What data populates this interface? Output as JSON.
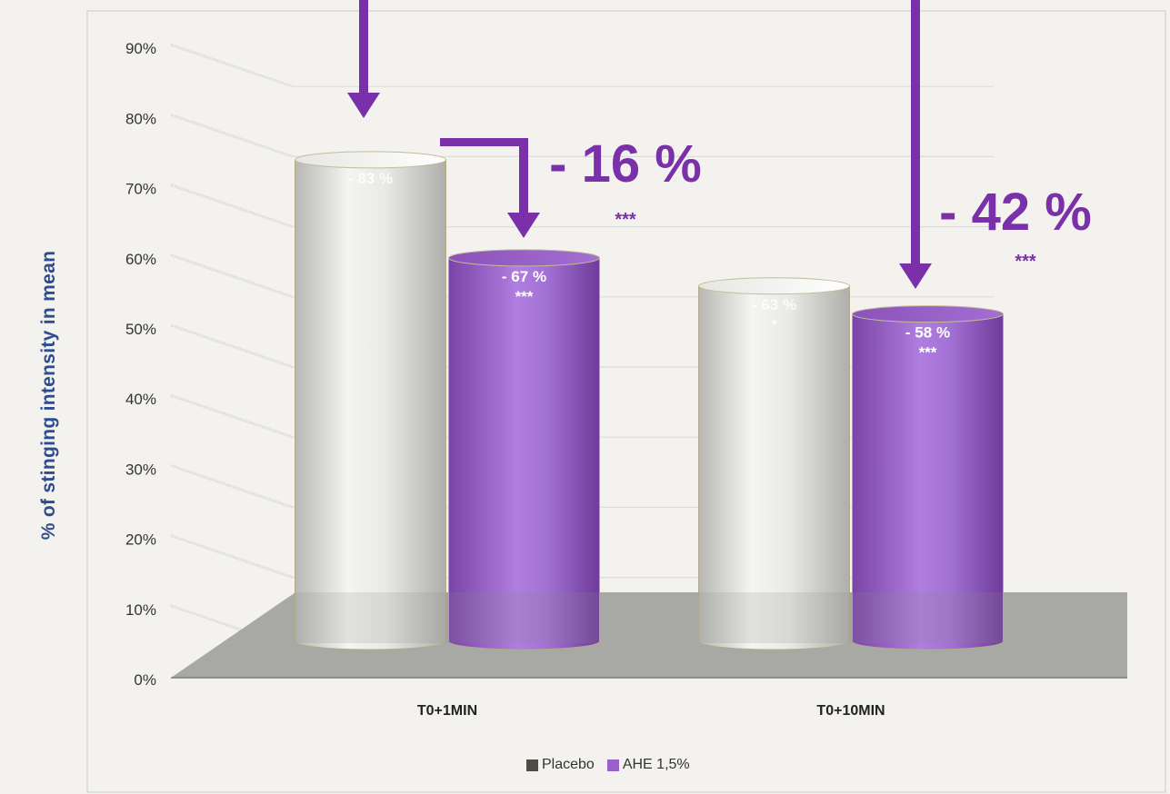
{
  "chart_data": {
    "type": "bar",
    "ylabel": "%  of stinging intensity in mean",
    "xlabel": "",
    "categories": [
      "T0+1MIN",
      "T0+10MIN"
    ],
    "yticks": [
      "0%",
      "10%",
      "20%",
      "30%",
      "40%",
      "50%",
      "60%",
      "70%",
      "80%",
      "90%"
    ],
    "ylim": [
      0,
      90
    ],
    "grid": true,
    "legend_position": "bottom",
    "series": [
      {
        "name": "Placebo",
        "values": [
          78,
          60
        ],
        "color": "#cfcfcb",
        "legend_color": "#4d4d45",
        "labels": [
          "- 83 %",
          "- 63 %"
        ],
        "sig": [
          "",
          "*"
        ]
      },
      {
        "name": "AHE 1,5%",
        "values": [
          64,
          56
        ],
        "color": "#9b63c9",
        "legend_color": "#9a62c8",
        "labels": [
          "- 67 %",
          "- 58 %"
        ],
        "sig": [
          "***",
          "***"
        ]
      }
    ],
    "annotations": [
      {
        "text": "- 16 %",
        "sig": "***"
      },
      {
        "text": "- 42 %",
        "sig": "***"
      }
    ],
    "accent_color": "#7a30a8",
    "axis_label_color": "#2e4d8f"
  }
}
